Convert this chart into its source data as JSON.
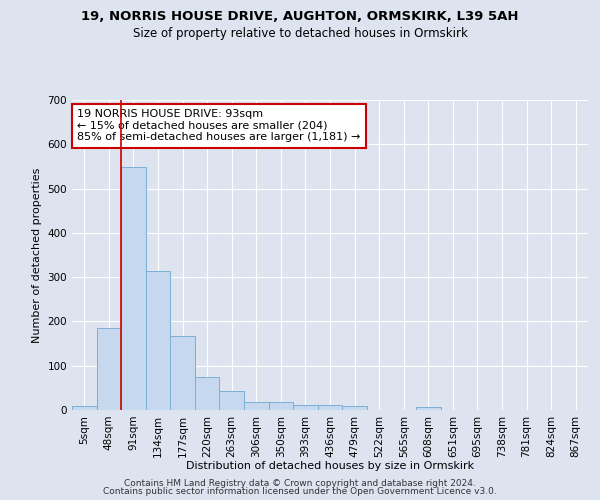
{
  "title1": "19, NORRIS HOUSE DRIVE, AUGHTON, ORMSKIRK, L39 5AH",
  "title2": "Size of property relative to detached houses in Ormskirk",
  "xlabel": "Distribution of detached houses by size in Ormskirk",
  "ylabel": "Number of detached properties",
  "categories": [
    "5sqm",
    "48sqm",
    "91sqm",
    "134sqm",
    "177sqm",
    "220sqm",
    "263sqm",
    "306sqm",
    "350sqm",
    "393sqm",
    "436sqm",
    "479sqm",
    "522sqm",
    "565sqm",
    "608sqm",
    "651sqm",
    "695sqm",
    "738sqm",
    "781sqm",
    "824sqm",
    "867sqm"
  ],
  "values": [
    8,
    186,
    548,
    315,
    167,
    75,
    42,
    18,
    18,
    11,
    11,
    10,
    0,
    0,
    7,
    0,
    0,
    0,
    0,
    0,
    0
  ],
  "bar_color": "#c5d8ee",
  "bar_edge_color": "#7bafd4",
  "vline_x_index": 2,
  "vline_color": "#cc0000",
  "annotation_text": "19 NORRIS HOUSE DRIVE: 93sqm\n← 15% of detached houses are smaller (204)\n85% of semi-detached houses are larger (1,181) →",
  "annotation_box_color": "#ffffff",
  "annotation_box_edge": "#cc0000",
  "ylim": [
    0,
    700
  ],
  "yticks": [
    0,
    100,
    200,
    300,
    400,
    500,
    600,
    700
  ],
  "footer1": "Contains HM Land Registry data © Crown copyright and database right 2024.",
  "footer2": "Contains public sector information licensed under the Open Government Licence v3.0.",
  "bg_color": "#dde4f0",
  "plot_bg_color": "#dde4f0",
  "grid_color": "#ffffff",
  "title_fontsize": 9.5,
  "subtitle_fontsize": 8.5,
  "axis_label_fontsize": 8,
  "tick_fontsize": 7.5,
  "annotation_fontsize": 8,
  "footer_fontsize": 6.5
}
